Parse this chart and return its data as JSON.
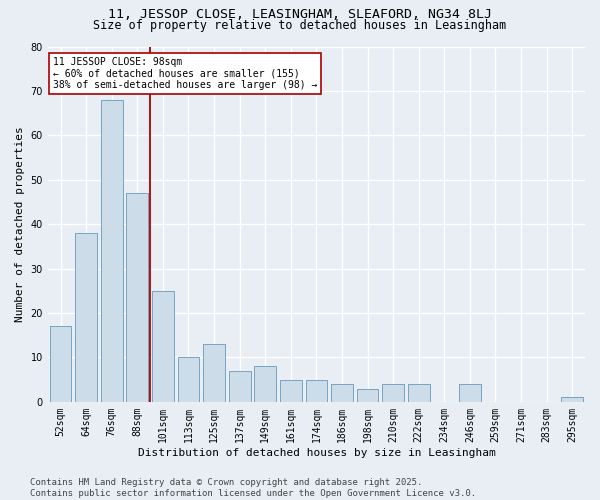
{
  "title_line1": "11, JESSOP CLOSE, LEASINGHAM, SLEAFORD, NG34 8LJ",
  "title_line2": "Size of property relative to detached houses in Leasingham",
  "xlabel": "Distribution of detached houses by size in Leasingham",
  "ylabel": "Number of detached properties",
  "categories": [
    "52sqm",
    "64sqm",
    "76sqm",
    "88sqm",
    "101sqm",
    "113sqm",
    "125sqm",
    "137sqm",
    "149sqm",
    "161sqm",
    "174sqm",
    "186sqm",
    "198sqm",
    "210sqm",
    "222sqm",
    "234sqm",
    "246sqm",
    "259sqm",
    "271sqm",
    "283sqm",
    "295sqm"
  ],
  "values": [
    17,
    38,
    68,
    47,
    25,
    10,
    13,
    7,
    8,
    5,
    5,
    4,
    3,
    4,
    4,
    0,
    4,
    0,
    0,
    0,
    1
  ],
  "bar_color": "#ccdce8",
  "bar_edge_color": "#6699bb",
  "vline_color": "#aa0000",
  "annotation_text": "11 JESSOP CLOSE: 98sqm\n← 60% of detached houses are smaller (155)\n38% of semi-detached houses are larger (98) →",
  "annotation_box_color": "#ffffff",
  "annotation_box_edge": "#aa0000",
  "ylim": [
    0,
    80
  ],
  "yticks": [
    0,
    10,
    20,
    30,
    40,
    50,
    60,
    70,
    80
  ],
  "footer_text": "Contains HM Land Registry data © Crown copyright and database right 2025.\nContains public sector information licensed under the Open Government Licence v3.0.",
  "background_color": "#e8eef4",
  "plot_bg_color": "#e8eef4",
  "grid_color": "#ffffff",
  "title_fontsize": 9.5,
  "subtitle_fontsize": 8.5,
  "axis_label_fontsize": 8,
  "tick_fontsize": 7,
  "footer_fontsize": 6.5,
  "annotation_fontsize": 7
}
